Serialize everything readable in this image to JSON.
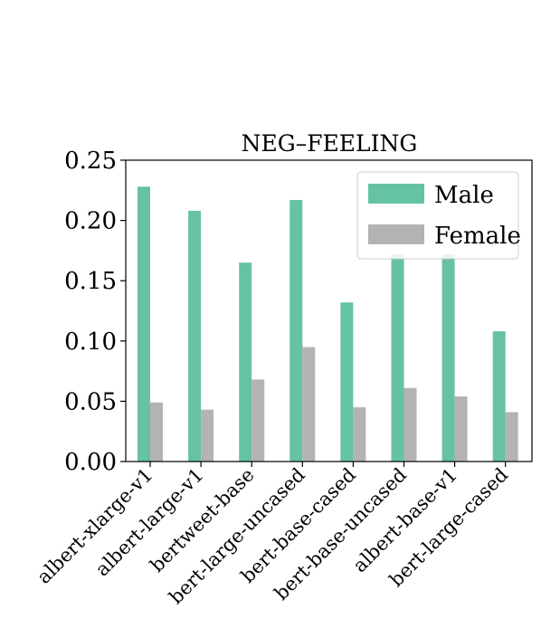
{
  "chart_data": {
    "type": "bar",
    "title": "NEG–FEELING",
    "xlabel": "",
    "ylabel": "",
    "categories": [
      "albert-xlarge-v1",
      "albert-large-v1",
      "bertweet-base",
      "bert-large-uncased",
      "bert-base-cased",
      "bert-base-uncased",
      "albert-base-v1",
      "bert-large-cased"
    ],
    "series": [
      {
        "name": "Male",
        "color": "#66c2a5",
        "values": [
          0.228,
          0.208,
          0.165,
          0.217,
          0.132,
          0.172,
          0.172,
          0.108
        ]
      },
      {
        "name": "Female",
        "color": "#b3b3b3",
        "values": [
          0.049,
          0.043,
          0.068,
          0.095,
          0.045,
          0.061,
          0.054,
          0.041
        ]
      }
    ],
    "ylim": [
      0,
      0.25
    ],
    "yticks": [
      "0.00",
      "0.05",
      "0.10",
      "0.15",
      "0.20",
      "0.25"
    ],
    "grid": false,
    "legend_position": "top-right"
  }
}
